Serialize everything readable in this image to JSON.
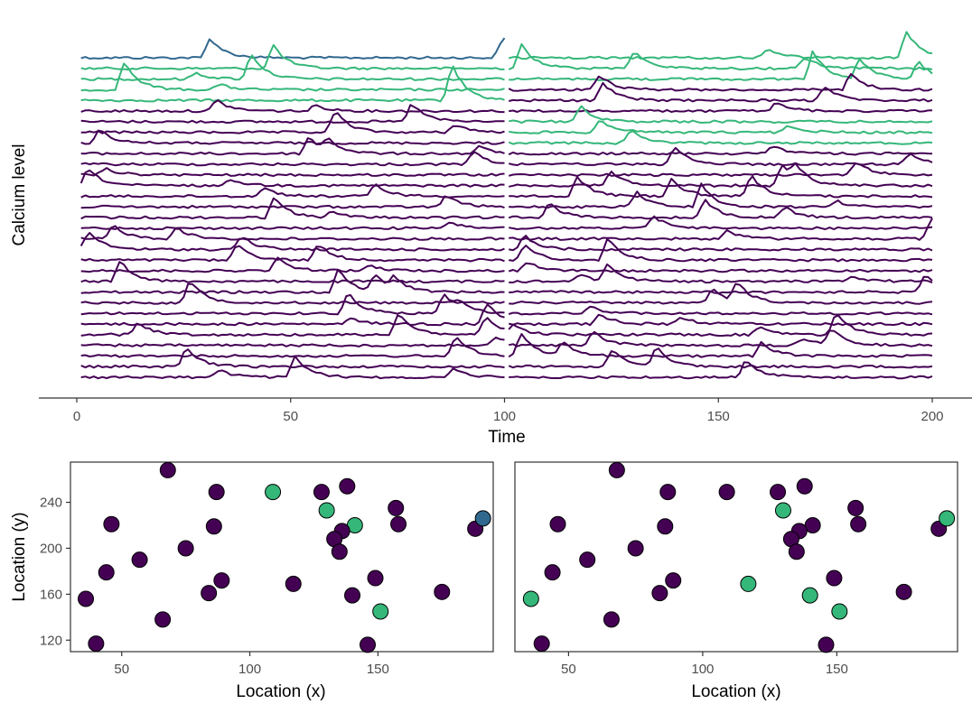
{
  "colors": {
    "baseline": "#440154",
    "cluster": "#35B779",
    "special": "#31688E",
    "axis": "#333333",
    "tick_text": "#4D4D4D"
  },
  "chart_data": [
    {
      "type": "line",
      "xlabel": "Time",
      "ylabel": "Calcium level",
      "xlim": [
        0,
        200
      ],
      "xticks": [
        0,
        50,
        100,
        150,
        200
      ],
      "grid": false,
      "legend": "none",
      "x_domain": [
        1,
        200
      ],
      "n_traces": 31,
      "gap_between": [
        100,
        101
      ],
      "segments": [
        {
          "range": [
            1,
            100
          ],
          "green_traces": [
            1,
            2,
            3,
            4
          ],
          "blue_traces": [
            0
          ]
        },
        {
          "range": [
            101,
            200
          ],
          "green_traces": [
            0,
            1,
            2,
            6,
            7,
            8
          ],
          "blue_traces": []
        }
      ],
      "description": "31 stacked calcium traces (offset vertically), each with transient peaks"
    },
    {
      "type": "scatter",
      "panel": "left",
      "xlabel": "Location (x)",
      "ylabel": "Location (y)",
      "xlim": [
        30,
        195
      ],
      "ylim": [
        110,
        275
      ],
      "xticks": [
        50,
        100,
        150
      ],
      "yticks": [
        120,
        160,
        200,
        240
      ],
      "points": [
        {
          "x": 68,
          "y": 268,
          "c": 0
        },
        {
          "x": 87,
          "y": 249,
          "c": 0
        },
        {
          "x": 109,
          "y": 249,
          "c": 1
        },
        {
          "x": 128,
          "y": 249,
          "c": 0
        },
        {
          "x": 138,
          "y": 254,
          "c": 0
        },
        {
          "x": 130,
          "y": 233,
          "c": 1
        },
        {
          "x": 141,
          "y": 220,
          "c": 1
        },
        {
          "x": 157,
          "y": 235,
          "c": 0
        },
        {
          "x": 158,
          "y": 221,
          "c": 0
        },
        {
          "x": 46,
          "y": 221,
          "c": 0
        },
        {
          "x": 86,
          "y": 219,
          "c": 0
        },
        {
          "x": 136,
          "y": 215,
          "c": 0
        },
        {
          "x": 133,
          "y": 208,
          "c": 0
        },
        {
          "x": 135,
          "y": 197,
          "c": 0
        },
        {
          "x": 75,
          "y": 200,
          "c": 0
        },
        {
          "x": 57,
          "y": 190,
          "c": 0
        },
        {
          "x": 44,
          "y": 179,
          "c": 0
        },
        {
          "x": 89,
          "y": 172,
          "c": 0
        },
        {
          "x": 84,
          "y": 161,
          "c": 0
        },
        {
          "x": 117,
          "y": 169,
          "c": 0
        },
        {
          "x": 149,
          "y": 174,
          "c": 0
        },
        {
          "x": 140,
          "y": 159,
          "c": 0
        },
        {
          "x": 175,
          "y": 162,
          "c": 0
        },
        {
          "x": 36,
          "y": 156,
          "c": 0
        },
        {
          "x": 151,
          "y": 145,
          "c": 1
        },
        {
          "x": 66,
          "y": 138,
          "c": 0
        },
        {
          "x": 40,
          "y": 117,
          "c": 0
        },
        {
          "x": 146,
          "y": 116,
          "c": 0
        },
        {
          "x": 188,
          "y": 217,
          "c": 0
        },
        {
          "x": 191,
          "y": 226,
          "c": 2
        }
      ]
    },
    {
      "type": "scatter",
      "panel": "right",
      "xlabel": "Location (x)",
      "ylabel": "",
      "xlim": [
        30,
        195
      ],
      "ylim": [
        110,
        275
      ],
      "xticks": [
        50,
        100,
        150
      ],
      "yticks": [],
      "points": [
        {
          "x": 68,
          "y": 268,
          "c": 0
        },
        {
          "x": 87,
          "y": 249,
          "c": 0
        },
        {
          "x": 109,
          "y": 249,
          "c": 0
        },
        {
          "x": 128,
          "y": 249,
          "c": 0
        },
        {
          "x": 138,
          "y": 254,
          "c": 0
        },
        {
          "x": 130,
          "y": 233,
          "c": 1
        },
        {
          "x": 141,
          "y": 220,
          "c": 0
        },
        {
          "x": 157,
          "y": 235,
          "c": 0
        },
        {
          "x": 158,
          "y": 221,
          "c": 0
        },
        {
          "x": 46,
          "y": 221,
          "c": 0
        },
        {
          "x": 86,
          "y": 219,
          "c": 0
        },
        {
          "x": 136,
          "y": 215,
          "c": 0
        },
        {
          "x": 133,
          "y": 208,
          "c": 0
        },
        {
          "x": 135,
          "y": 197,
          "c": 0
        },
        {
          "x": 75,
          "y": 200,
          "c": 0
        },
        {
          "x": 57,
          "y": 190,
          "c": 0
        },
        {
          "x": 44,
          "y": 179,
          "c": 0
        },
        {
          "x": 89,
          "y": 172,
          "c": 0
        },
        {
          "x": 84,
          "y": 161,
          "c": 0
        },
        {
          "x": 117,
          "y": 169,
          "c": 1
        },
        {
          "x": 149,
          "y": 174,
          "c": 0
        },
        {
          "x": 140,
          "y": 159,
          "c": 1
        },
        {
          "x": 175,
          "y": 162,
          "c": 0
        },
        {
          "x": 36,
          "y": 156,
          "c": 1
        },
        {
          "x": 151,
          "y": 145,
          "c": 1
        },
        {
          "x": 66,
          "y": 138,
          "c": 0
        },
        {
          "x": 40,
          "y": 117,
          "c": 0
        },
        {
          "x": 146,
          "y": 116,
          "c": 0
        },
        {
          "x": 188,
          "y": 217,
          "c": 0
        },
        {
          "x": 191,
          "y": 226,
          "c": 1
        }
      ]
    }
  ]
}
